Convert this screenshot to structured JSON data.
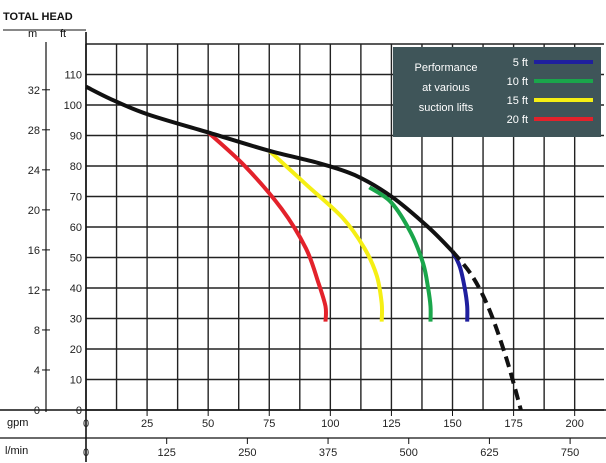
{
  "chart_data": {
    "type": "line",
    "title": "TOTAL HEAD",
    "y_units": {
      "left": "m",
      "right": "ft"
    },
    "x_units": {
      "top": "gpm",
      "bottom": "l/min"
    },
    "ylim_ft": [
      0,
      120
    ],
    "xlim_gpm": [
      0,
      212
    ],
    "ft_ticks": [
      "0",
      "10",
      "20",
      "30",
      "40",
      "50",
      "60",
      "70",
      "80",
      "90",
      "100",
      "110"
    ],
    "m_ticks": [
      "0",
      "4",
      "8",
      "12",
      "16",
      "20",
      "24",
      "28",
      "32"
    ],
    "gpm_ticks": [
      "0",
      "25",
      "50",
      "75",
      "100",
      "125",
      "150",
      "175",
      "200"
    ],
    "lmin_ticks": [
      "0",
      "125",
      "250",
      "375",
      "500",
      "625",
      "750"
    ],
    "legend": {
      "heading": [
        "Performance",
        "at various",
        "suction lifts"
      ],
      "items": [
        {
          "label": "5 ft",
          "color": "#1f1f9e"
        },
        {
          "label": "10 ft",
          "color": "#1aa64b"
        },
        {
          "label": "15 ft",
          "color": "#f5ef14"
        },
        {
          "label": "20 ft",
          "color": "#e3222b"
        }
      ]
    },
    "series": [
      {
        "color": "#111111",
        "style": "solid",
        "x": [
          0,
          10,
          25,
          50,
          75,
          95,
          110,
          125,
          140,
          150
        ],
        "y": [
          106,
          102,
          97,
          91,
          85,
          81,
          77,
          70,
          60,
          52
        ]
      },
      {
        "color": "#111111",
        "style": "dashed",
        "x": [
          150,
          158,
          165,
          172,
          178
        ],
        "y": [
          52,
          44,
          33,
          17,
          0
        ]
      },
      {
        "name": "5 ft",
        "color": "#1f1f9e",
        "style": "solid",
        "x": [
          150,
          153,
          155,
          156,
          156
        ],
        "y": [
          52,
          47,
          40,
          34,
          29
        ]
      },
      {
        "name": "10 ft",
        "color": "#1aa64b",
        "style": "solid",
        "x": [
          116,
          125,
          133,
          138,
          140,
          141,
          141
        ],
        "y": [
          73,
          68,
          58,
          48,
          40,
          34,
          29
        ]
      },
      {
        "name": "15 ft",
        "color": "#f5ef14",
        "style": "solid",
        "x": [
          75,
          90,
          105,
          114,
          119,
          121,
          121
        ],
        "y": [
          85,
          74,
          63,
          53,
          44,
          35,
          29
        ]
      },
      {
        "name": "20 ft",
        "color": "#e3222b",
        "style": "solid",
        "x": [
          50,
          65,
          80,
          90,
          95,
          98,
          98
        ],
        "y": [
          91,
          80,
          66,
          53,
          42,
          34,
          29
        ]
      }
    ]
  }
}
